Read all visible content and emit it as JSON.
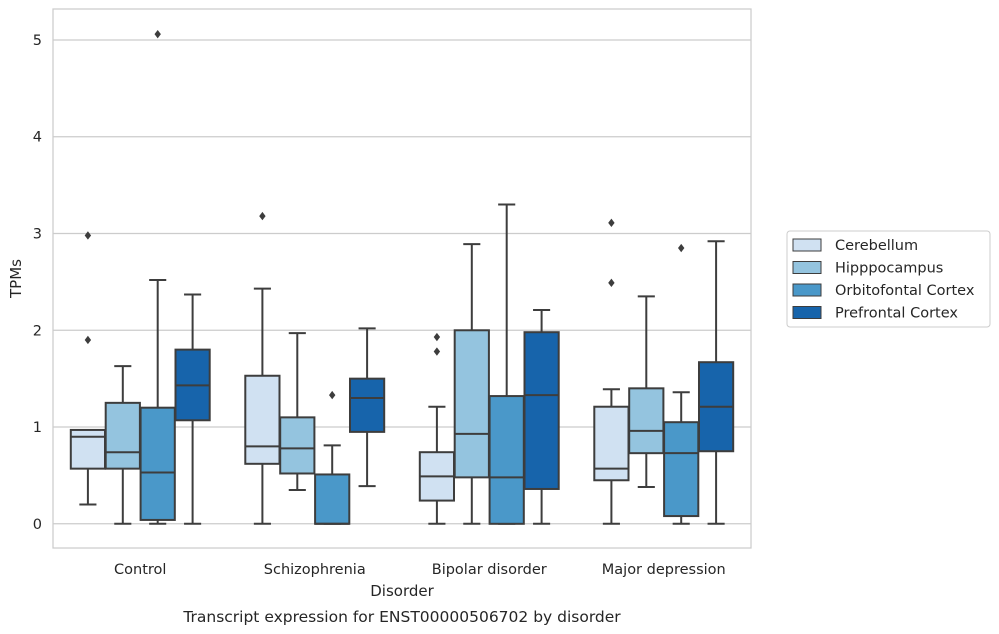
{
  "chart_data": {
    "type": "box",
    "caption": "Transcript expression for ENST00000506702 by disorder",
    "xlabel": "Disorder",
    "ylabel": "TPMs",
    "ylim": [
      -0.25,
      5.32
    ],
    "yticks": [
      "0",
      "1",
      "2",
      "3",
      "4",
      "5"
    ],
    "grid": "horizontal",
    "legend": "right",
    "categories": [
      "Control",
      "Schizophrenia",
      "Bipolar disorder",
      "Major depression"
    ],
    "series": [
      {
        "name": "Cerebellum",
        "color": "#d0e1f2",
        "boxes": [
          {
            "whislo": 0.2,
            "q1": 0.57,
            "med": 0.9,
            "q3": 0.97,
            "whishi": 0.97,
            "fliers": [
              1.9,
              2.98
            ]
          },
          {
            "whislo": 0.0,
            "q1": 0.62,
            "med": 0.8,
            "q3": 1.53,
            "whishi": 2.43,
            "fliers": [
              3.18
            ]
          },
          {
            "whislo": 0.0,
            "q1": 0.24,
            "med": 0.49,
            "q3": 0.74,
            "whishi": 1.21,
            "fliers": [
              1.78,
              1.93
            ]
          },
          {
            "whislo": 0.0,
            "q1": 0.45,
            "med": 0.57,
            "q3": 1.21,
            "whishi": 1.39,
            "fliers": [
              2.49,
              3.11
            ]
          }
        ]
      },
      {
        "name": "Hipppocampus",
        "color": "#94c4df",
        "boxes": [
          {
            "whislo": 0.0,
            "q1": 0.57,
            "med": 0.74,
            "q3": 1.25,
            "whishi": 1.63,
            "fliers": []
          },
          {
            "whislo": 0.35,
            "q1": 0.52,
            "med": 0.78,
            "q3": 1.1,
            "whishi": 1.97,
            "fliers": []
          },
          {
            "whislo": 0.0,
            "q1": 0.48,
            "med": 0.93,
            "q3": 2.0,
            "whishi": 2.89,
            "fliers": []
          },
          {
            "whislo": 0.38,
            "q1": 0.73,
            "med": 0.96,
            "q3": 1.4,
            "whishi": 2.35,
            "fliers": []
          }
        ]
      },
      {
        "name": "Orbitofontal Cortex",
        "color": "#4a98c9",
        "boxes": [
          {
            "whislo": 0.0,
            "q1": 0.04,
            "med": 0.53,
            "q3": 1.2,
            "whishi": 2.52,
            "fliers": [
              5.06
            ]
          },
          {
            "whislo": 0.0,
            "q1": 0.0,
            "med": 0.0,
            "q3": 0.51,
            "whishi": 0.81,
            "fliers": [
              1.33
            ]
          },
          {
            "whislo": 0.0,
            "q1": 0.0,
            "med": 0.48,
            "q3": 1.32,
            "whishi": 3.3,
            "fliers": []
          },
          {
            "whislo": 0.0,
            "q1": 0.08,
            "med": 0.73,
            "q3": 1.05,
            "whishi": 1.36,
            "fliers": [
              2.85
            ]
          }
        ]
      },
      {
        "name": "Prefrontal Cortex",
        "color": "#1764ab",
        "boxes": [
          {
            "whislo": 0.0,
            "q1": 1.07,
            "med": 1.43,
            "q3": 1.8,
            "whishi": 2.37,
            "fliers": []
          },
          {
            "whislo": 0.39,
            "q1": 0.95,
            "med": 1.3,
            "q3": 1.5,
            "whishi": 2.02,
            "fliers": []
          },
          {
            "whislo": 0.0,
            "q1": 0.36,
            "med": 1.33,
            "q3": 1.98,
            "whishi": 2.21,
            "fliers": []
          },
          {
            "whislo": 0.0,
            "q1": 0.75,
            "med": 1.21,
            "q3": 1.67,
            "whishi": 2.92,
            "fliers": []
          }
        ]
      }
    ]
  }
}
